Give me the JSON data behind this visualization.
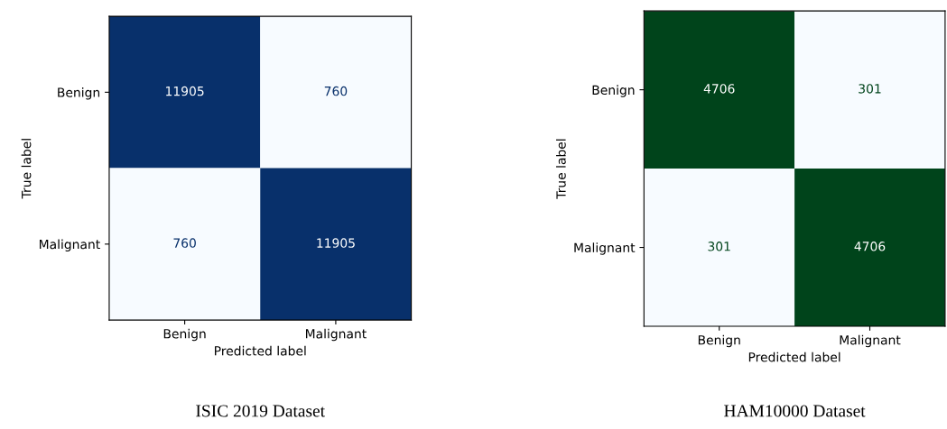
{
  "chart_data": [
    {
      "type": "heatmap",
      "categories": [
        "Benign",
        "Malignant"
      ],
      "y_categories": [
        "Benign",
        "Malignant"
      ],
      "cells": [
        [
          11905,
          760
        ],
        [
          760,
          11905
        ]
      ],
      "data_labels": true,
      "xlabel": "Predicted label",
      "ylabel": "True label",
      "color": "#08306b",
      "annotations": [
        "ISIC 2019 Dataset"
      ]
    },
    {
      "type": "heatmap",
      "categories": [
        "Benign",
        "Malignant"
      ],
      "y_categories": [
        "Benign",
        "Malignant"
      ],
      "cells": [
        [
          4706,
          301
        ],
        [
          301,
          4706
        ]
      ],
      "data_labels": true,
      "xlabel": "Predicted label",
      "ylabel": "True label",
      "color": "#00441b",
      "annotations": [
        "HAM10000 Dataset"
      ]
    }
  ]
}
